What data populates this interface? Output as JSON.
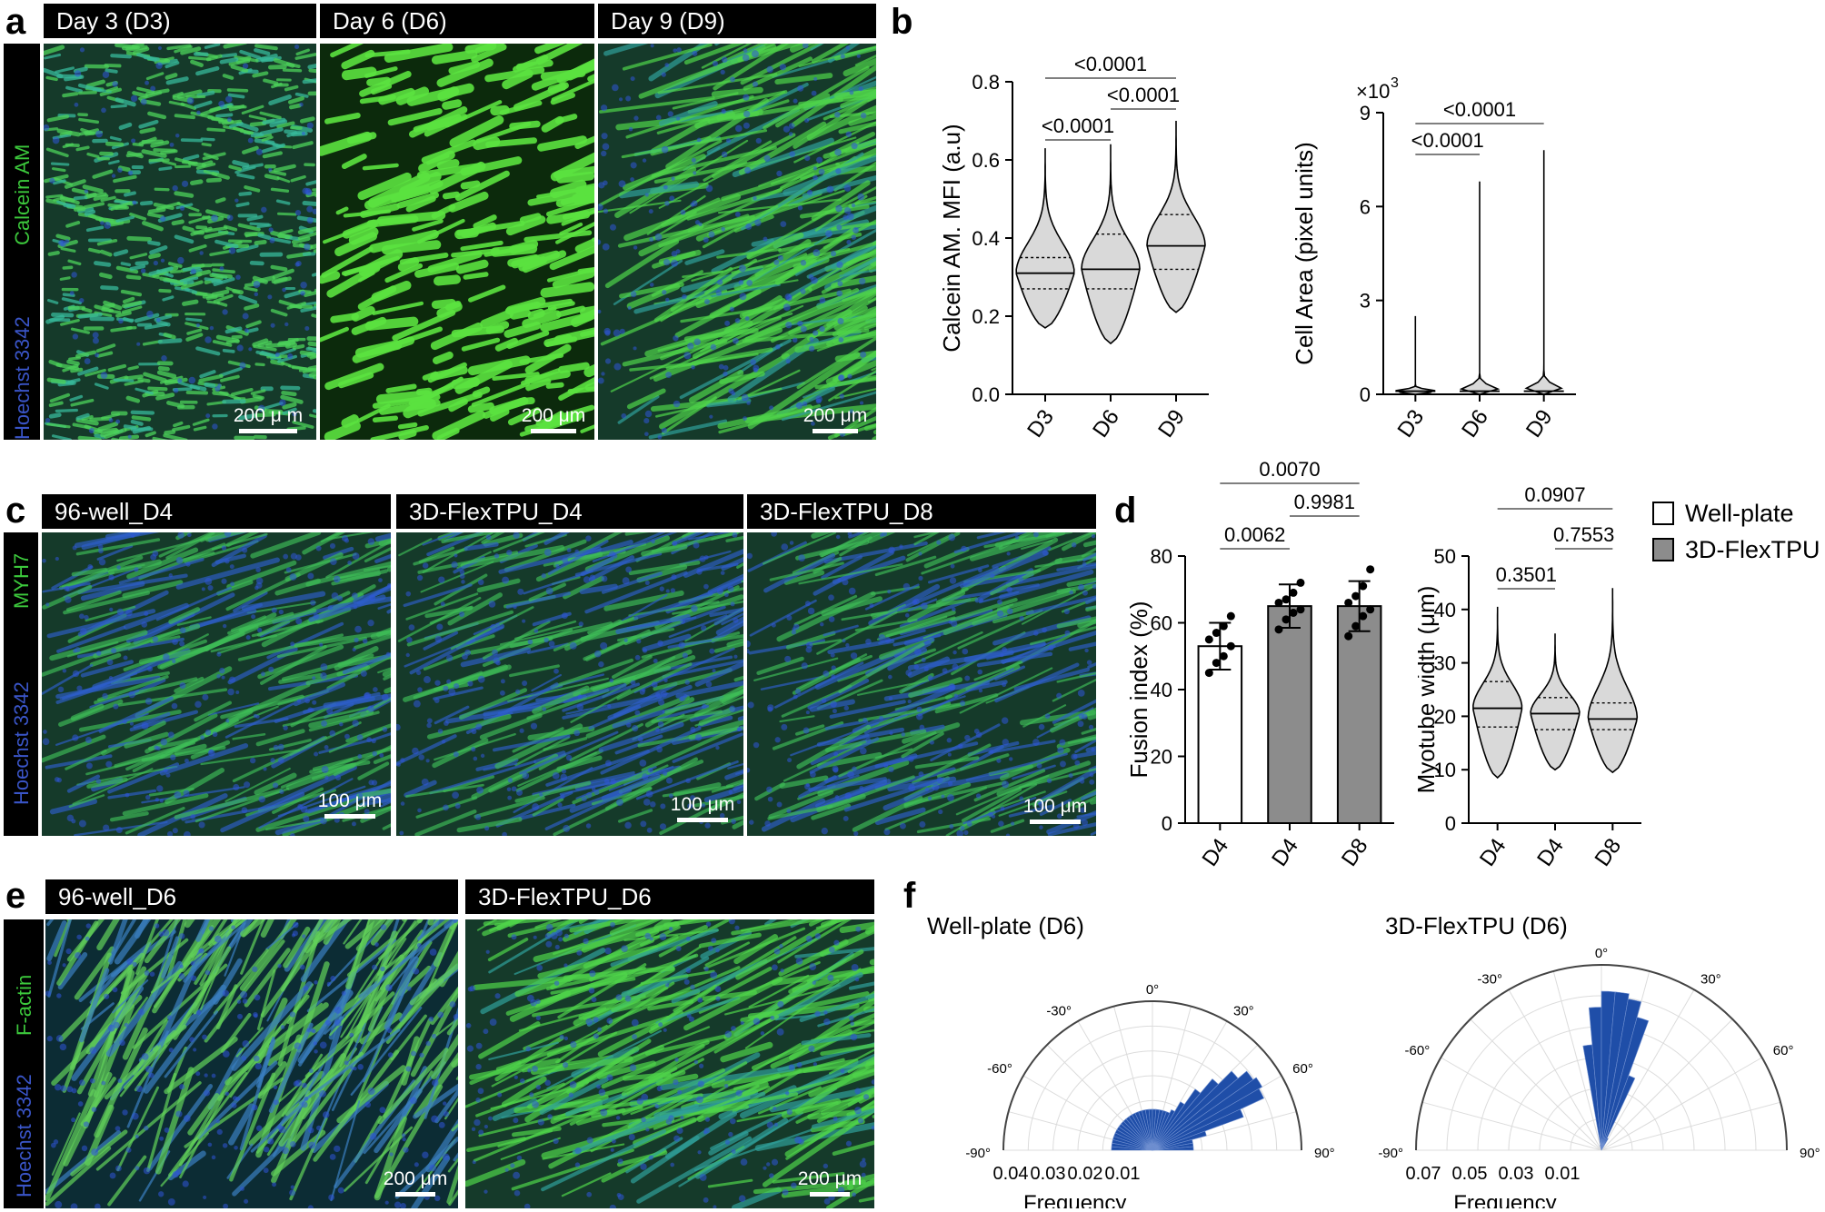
{
  "panel_labels": {
    "a": "a",
    "b": "b",
    "c": "c",
    "d": "d",
    "e": "e",
    "f": "f"
  },
  "panel_a": {
    "headers": [
      "Day 3 (D3)",
      "Day 6 (D6)",
      "Day 9 (D9)"
    ],
    "stain_green": "Calcein AM",
    "stain_blue": "Hoechst 3342",
    "scalebars": [
      "200 μ m",
      "200 μm",
      "200 μm"
    ]
  },
  "panel_c": {
    "headers": [
      "96-well_D4",
      "3D-FlexTPU_D4",
      "3D-FlexTPU_D8"
    ],
    "stain_green": "MYH7",
    "stain_blue": "Hoechst 3342",
    "scalebars": [
      "100 μm",
      "100 μm",
      "100 μm"
    ]
  },
  "panel_e": {
    "headers": [
      "96-well_D6",
      "3D-FlexTPU_D6"
    ],
    "stain_green": "F-actin",
    "stain_blue": "Hoechst 3342",
    "scalebars": [
      "200 μm",
      "200 μm"
    ]
  },
  "legend": {
    "items": [
      "Well-plate",
      "3D-FlexTPU"
    ]
  },
  "colors": {
    "green_stain": "#3cc83c",
    "blue_stain": "#3a55c8",
    "violin_fill": "#d9d9d9",
    "bar_gray": "#8c8c8c",
    "polar_blue": "#1f4ea8"
  },
  "chart_data": [
    {
      "id": "b-left",
      "type": "violin",
      "ylabel": "Calcein AM. MFI (a.u)",
      "xlabel": "",
      "categories": [
        "D3",
        "D6",
        "D9"
      ],
      "ylim": [
        0,
        0.8
      ],
      "yticks": [
        "0.0",
        "0.2",
        "0.4",
        "0.6",
        "0.8"
      ],
      "violins": [
        {
          "min": 0.17,
          "q1": 0.27,
          "median": 0.31,
          "q3": 0.35,
          "max": 0.63
        },
        {
          "min": 0.13,
          "q1": 0.27,
          "median": 0.32,
          "q3": 0.41,
          "max": 0.64
        },
        {
          "min": 0.21,
          "q1": 0.32,
          "median": 0.38,
          "q3": 0.46,
          "max": 0.7
        }
      ],
      "significance": [
        {
          "from": 0,
          "to": 2,
          "label": "<0.0001"
        },
        {
          "from": 1,
          "to": 2,
          "label": "<0.0001"
        },
        {
          "from": 0,
          "to": 1,
          "label": "<0.0001"
        }
      ]
    },
    {
      "id": "b-right",
      "type": "violin",
      "ylabel": "Cell Area (pixel units)",
      "multiplier": "×10",
      "multiplier_exp": "3",
      "categories": [
        "D3",
        "D6",
        "D9"
      ],
      "ylim": [
        0,
        9
      ],
      "yticks": [
        "0",
        "3",
        "6",
        "9"
      ],
      "violins": [
        {
          "min": 0.0,
          "median": 0.1,
          "max": 2.5
        },
        {
          "min": 0.0,
          "median": 0.1,
          "max": 6.8
        },
        {
          "min": 0.0,
          "median": 0.1,
          "max": 7.8
        }
      ],
      "significance": [
        {
          "from": 0,
          "to": 2,
          "label": "<0.0001"
        },
        {
          "from": 0,
          "to": 1,
          "label": "<0.0001"
        }
      ]
    },
    {
      "id": "d-left",
      "type": "bar",
      "ylabel": "Fusion index (%)",
      "categories": [
        "D4",
        "D4",
        "D8"
      ],
      "ylim": [
        0,
        80
      ],
      "yticks": [
        "0",
        "20",
        "40",
        "60",
        "80"
      ],
      "values": [
        53,
        65,
        65
      ],
      "errors": [
        7,
        6.5,
        7.5
      ],
      "points": [
        [
          45,
          48,
          50,
          53,
          55,
          57,
          59,
          62
        ],
        [
          58,
          61,
          63,
          64,
          66,
          67,
          69,
          72
        ],
        [
          56,
          59,
          62,
          64,
          66,
          68,
          71,
          76
        ]
      ],
      "significance": [
        {
          "from": 0,
          "to": 2,
          "label": "0.0070"
        },
        {
          "from": 1,
          "to": 2,
          "label": "0.9981"
        },
        {
          "from": 0,
          "to": 1,
          "label": "0.0062"
        }
      ]
    },
    {
      "id": "d-right",
      "type": "violin",
      "ylabel": "Myotube width (μm)",
      "categories": [
        "D4",
        "D4",
        "D8"
      ],
      "ylim": [
        0,
        50
      ],
      "yticks": [
        "0",
        "10",
        "20",
        "30",
        "40",
        "50"
      ],
      "violins": [
        {
          "min": 8.5,
          "q1": 18,
          "median": 21.5,
          "q3": 26.5,
          "max": 40.5
        },
        {
          "min": 10,
          "q1": 17.5,
          "median": 20.5,
          "q3": 23.5,
          "max": 35.5
        },
        {
          "min": 9.5,
          "q1": 17.5,
          "median": 19.5,
          "q3": 22.5,
          "max": 44
        }
      ],
      "significance": [
        {
          "from": 0,
          "to": 2,
          "label": "0.0907"
        },
        {
          "from": 1,
          "to": 2,
          "label": "0.7553"
        },
        {
          "from": 0,
          "to": 1,
          "label": "0.3501"
        }
      ]
    },
    {
      "id": "f-left",
      "type": "polar-histogram",
      "title": "Well-plate (D6)",
      "xlabel": "Frequency",
      "rlim": [
        0,
        0.04
      ],
      "rticks": [
        "0.04",
        "0.03",
        "0.02",
        "0.01"
      ],
      "angle_ticks": [
        "-90°",
        "-60°",
        "-30°",
        "0°",
        "30°",
        "60°",
        "90°"
      ],
      "bins_deg": [
        -87.5,
        -82.5,
        -77.5,
        -72.5,
        -67.5,
        -62.5,
        -57.5,
        -52.5,
        -47.5,
        -42.5,
        -37.5,
        -32.5,
        -27.5,
        -22.5,
        -17.5,
        -12.5,
        -7.5,
        -2.5,
        2.5,
        7.5,
        12.5,
        17.5,
        22.5,
        27.5,
        32.5,
        37.5,
        42.5,
        47.5,
        52.5,
        57.5,
        62.5,
        67.5,
        72.5,
        77.5,
        82.5,
        87.5
      ],
      "frequencies": [
        0.011,
        0.011,
        0.011,
        0.011,
        0.011,
        0.011,
        0.011,
        0.011,
        0.011,
        0.011,
        0.011,
        0.011,
        0.011,
        0.011,
        0.011,
        0.011,
        0.011,
        0.011,
        0.011,
        0.011,
        0.011,
        0.011,
        0.011,
        0.012,
        0.015,
        0.02,
        0.025,
        0.03,
        0.033,
        0.034,
        0.033,
        0.026,
        0.015,
        0.011,
        0.011,
        0.011
      ]
    },
    {
      "id": "f-right",
      "type": "polar-histogram",
      "title": "3D-FlexTPU (D6)",
      "xlabel": "Frequency",
      "rlim": [
        0,
        0.07
      ],
      "rticks": [
        "0.07",
        "0.05",
        "0.03",
        "0.01"
      ],
      "angle_ticks": [
        "-90°",
        "-60°",
        "-30°",
        "0°",
        "30°",
        "60°",
        "90°"
      ],
      "bins_deg": [
        -27.5,
        -22.5,
        -17.5,
        -12.5,
        -7.5,
        -2.5,
        2.5,
        7.5,
        12.5,
        17.5,
        22.5,
        27.5
      ],
      "frequencies": [
        0.0,
        0.0,
        0.0,
        0.002,
        0.04,
        0.054,
        0.06,
        0.06,
        0.058,
        0.052,
        0.03,
        0.005
      ]
    }
  ]
}
